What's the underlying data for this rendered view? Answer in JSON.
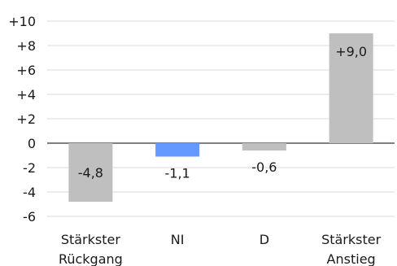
{
  "chart_data": {
    "type": "bar",
    "title": "",
    "xlabel": "",
    "ylabel": "",
    "categories": [
      [
        "Stärkster",
        "Rückgang"
      ],
      [
        "NI"
      ],
      [
        "D"
      ],
      [
        "Stärkster",
        "Anstieg"
      ]
    ],
    "values": [
      -4.8,
      -1.1,
      -0.6,
      9.0
    ],
    "data_labels": [
      "-4,8",
      "-1,1",
      "-0,6",
      "+9,0"
    ],
    "ylim": [
      -6,
      10
    ],
    "yticks": [
      10,
      8,
      6,
      4,
      2,
      0,
      -2,
      -4,
      -6
    ],
    "ytick_labels": [
      "+10",
      "+8",
      "+6",
      "+4",
      "+2",
      "0",
      "-2",
      "-4",
      "-6"
    ],
    "grid": true,
    "colors": {
      "default_bar": "#bfbfbf",
      "highlight_bar": "#6699ff",
      "grid": "#d9d9d9",
      "axis": "#000000"
    },
    "highlight_index": 1
  }
}
